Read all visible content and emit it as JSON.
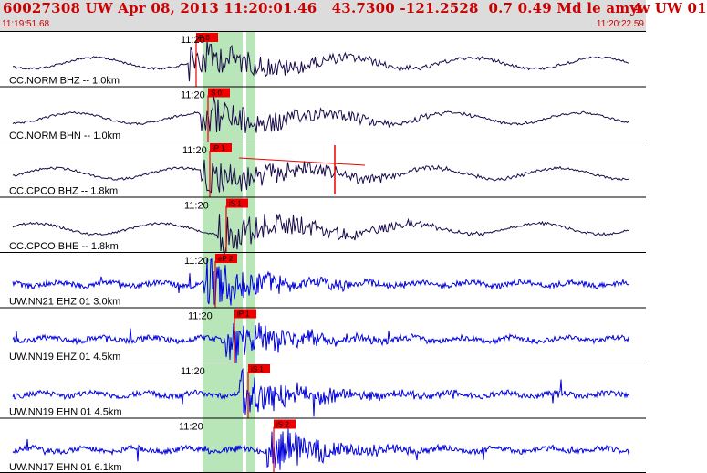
{
  "header": {
    "title": "60027308 UW Apr 08, 2013 11:20:01.46   43.7300 -121.2528  0.7 0.49 Md le amyw UW 01",
    "right_text": "4",
    "start_time": "11:19:51.68",
    "end_time": "11:20:22.59"
  },
  "colors": {
    "header_bg": "#dcdcdc",
    "header_text": "#cc0000",
    "trace_dark": "#1a0a4a",
    "trace_blue": "#0000dd",
    "pick": "#ee0000",
    "window": "#b8e6b8"
  },
  "traces": [
    {
      "label": "CC.NORM BHZ -- 1.0km",
      "minute_label": "11:20",
      "pick_label": "P 0",
      "color": "dark"
    },
    {
      "label": "CC.NORM BHN -- 1.0km",
      "minute_label": "11:20",
      "pick_label": "S 0",
      "color": "dark"
    },
    {
      "label": "CC.CPCO BHZ -- 1.8km",
      "minute_label": "11:20",
      "pick_label": "iP 1",
      "color": "dark"
    },
    {
      "label": "CC.CPCO BHE -- 1.8km",
      "minute_label": "11:20",
      "pick_label": "iS 1",
      "color": "dark"
    },
    {
      "label": "UW.NN21 EHZ 01 3.0km",
      "minute_label": "11:20",
      "pick_label": "eP 2",
      "color": "blue"
    },
    {
      "label": "UW.NN19 EHZ 01 4.5km",
      "minute_label": "11:20",
      "pick_label": "iP 1",
      "color": "blue"
    },
    {
      "label": "UW.NN19 EHN 01 4.5km",
      "minute_label": "11:20",
      "pick_label": "iS 1",
      "color": "blue"
    },
    {
      "label": "UW.NN17 EHN 01 6.1km",
      "minute_label": "11:20",
      "pick_label": "iS 2",
      "color": "blue"
    }
  ]
}
